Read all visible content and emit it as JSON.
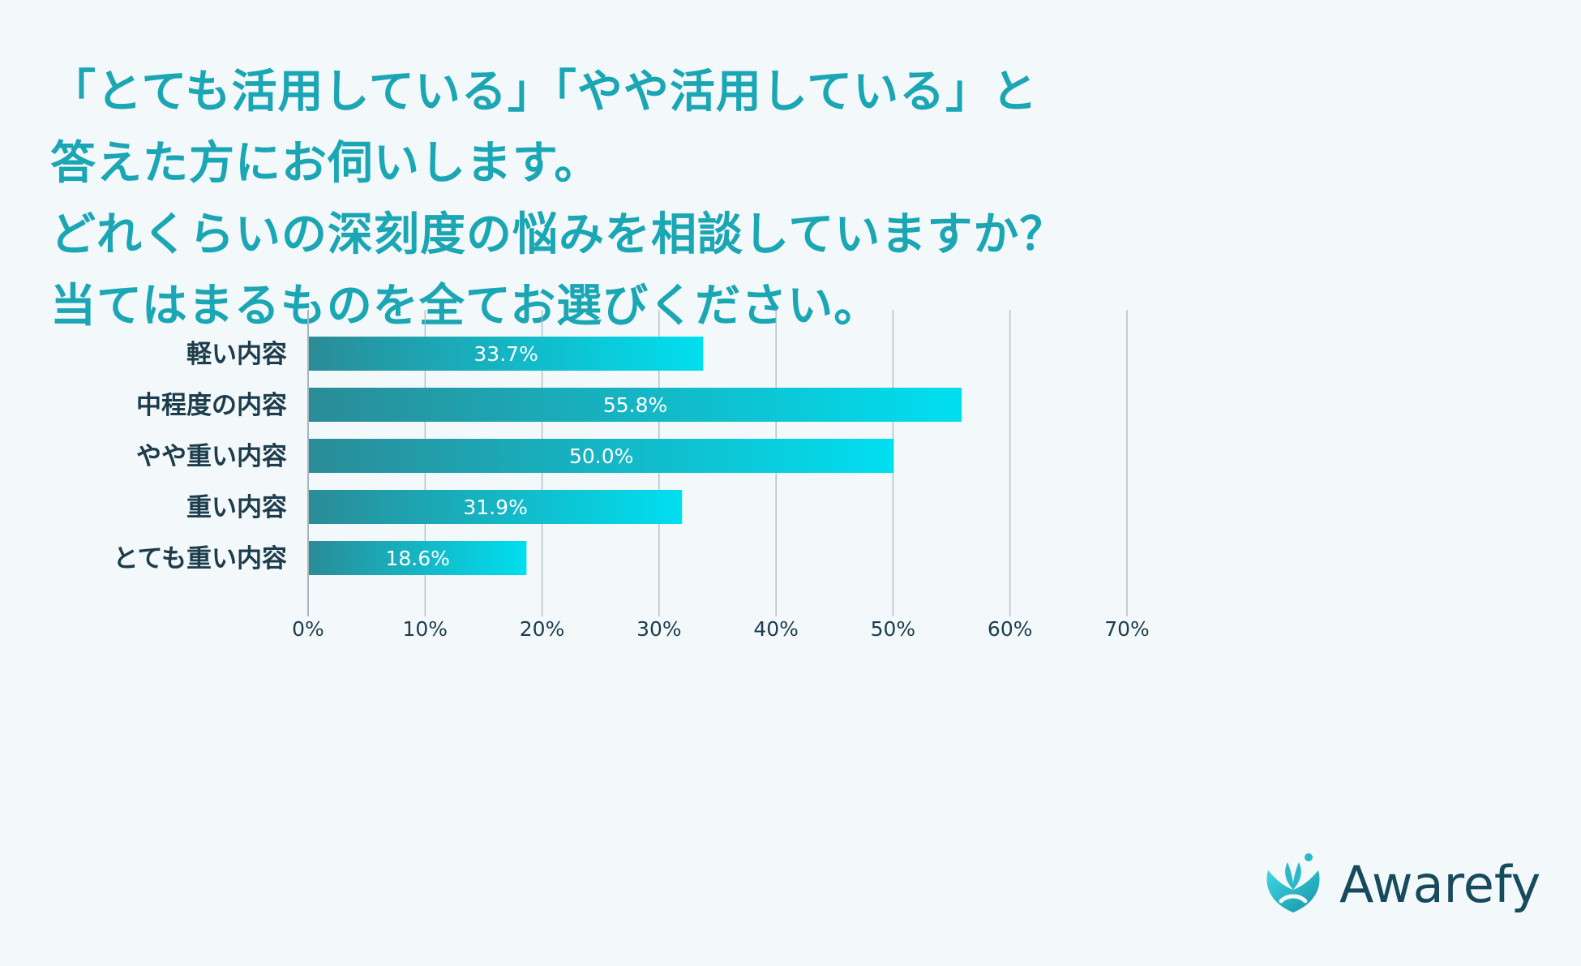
{
  "title_lines": [
    "「とても活用している」「やや活用している」と",
    "答えた方にお伺いします。",
    "どれくらいの深刻度の悩みを相談していますか？",
    "当てはまるものを全てお選びください。"
  ],
  "brand": {
    "name": "Awarefy",
    "mark": "awarefy-logo-icon"
  },
  "colors": {
    "title": "#1ba6b4",
    "category_label": "#1d3d4c",
    "tick_label": "#1d3d4c",
    "bar_start": "#2a8c97",
    "bar_end": "#00dff0",
    "grid": "#a6b6bd",
    "brand_text": "#164a5c"
  },
  "chart_data": {
    "type": "bar",
    "orientation": "horizontal",
    "categories": [
      "軽い内容",
      "中程度の内容",
      "やや重い内容",
      "重い内容",
      "とても重い内容"
    ],
    "values": [
      33.7,
      55.8,
      50.0,
      31.9,
      18.6
    ],
    "value_labels": [
      "33.7%",
      "55.8%",
      "50.0%",
      "31.9%",
      "18.6%"
    ],
    "xlim": [
      0,
      70
    ],
    "xticks": [
      0,
      10,
      20,
      30,
      40,
      50,
      60,
      70
    ],
    "xtick_labels": [
      "0%",
      "10%",
      "20%",
      "30%",
      "40%",
      "50%",
      "60%",
      "70%"
    ],
    "grid": true,
    "legend": "none"
  }
}
